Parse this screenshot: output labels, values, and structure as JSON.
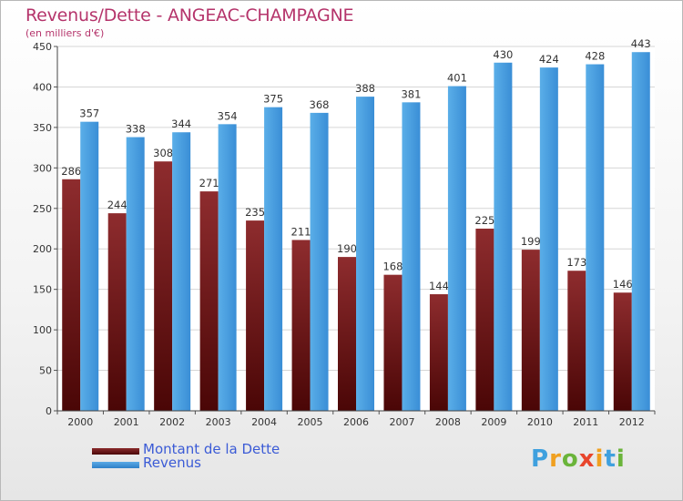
{
  "header": {
    "title": "Revenus/Dette - ANGEAC-CHAMPAGNE",
    "subtitle": "(en milliers d'€)"
  },
  "chart_data": {
    "type": "bar",
    "categories": [
      "2000",
      "2001",
      "2002",
      "2003",
      "2004",
      "2005",
      "2006",
      "2007",
      "2008",
      "2009",
      "2010",
      "2011",
      "2012"
    ],
    "series": [
      {
        "name": "Montant de la Dette",
        "color": "#7a1a1c",
        "values": [
          286,
          244,
          308,
          271,
          235,
          211,
          190,
          168,
          144,
          225,
          199,
          173,
          146
        ]
      },
      {
        "name": "Revenus",
        "color": "#3f97de",
        "values": [
          357,
          338,
          344,
          354,
          375,
          368,
          388,
          381,
          401,
          430,
          424,
          428,
          443
        ]
      }
    ],
    "ylim": [
      0,
      450
    ],
    "yticks": [
      0,
      50,
      100,
      150,
      200,
      250,
      300,
      350,
      400,
      450
    ],
    "grid": true,
    "legend_position": "bottom-left"
  },
  "brand": {
    "logo_letters": [
      "P",
      "r",
      "o",
      "x",
      "i",
      "t",
      "i"
    ],
    "logo_colors": [
      "#3fa0de",
      "#f0a020",
      "#6ab43a",
      "#e8452c",
      "#f0a020",
      "#3fa0de",
      "#6ab43a"
    ]
  }
}
